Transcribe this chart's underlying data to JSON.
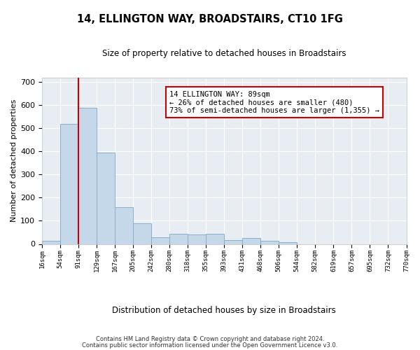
{
  "title": "14, ELLINGTON WAY, BROADSTAIRS, CT10 1FG",
  "subtitle": "Size of property relative to detached houses in Broadstairs",
  "xlabel": "Distribution of detached houses by size in Broadstairs",
  "ylabel": "Number of detached properties",
  "bar_values": [
    15,
    520,
    590,
    395,
    160,
    90,
    30,
    45,
    42,
    45,
    18,
    25,
    15,
    8,
    0,
    0,
    0,
    0,
    0,
    0
  ],
  "categories": [
    "16sqm",
    "54sqm",
    "91sqm",
    "129sqm",
    "167sqm",
    "205sqm",
    "242sqm",
    "280sqm",
    "318sqm",
    "355sqm",
    "393sqm",
    "431sqm",
    "468sqm",
    "506sqm",
    "544sqm",
    "582sqm",
    "619sqm",
    "657sqm",
    "695sqm",
    "732sqm",
    "770sqm"
  ],
  "bar_color": "#c5d8ea",
  "bar_edge_color": "#8aafc8",
  "vline_color": "#cc0000",
  "annotation_text": "14 ELLINGTON WAY: 89sqm\n← 26% of detached houses are smaller (480)\n73% of semi-detached houses are larger (1,355) →",
  "annotation_box_color": "#ffffff",
  "annotation_box_edge": "#cc0000",
  "ylim": [
    0,
    720
  ],
  "yticks": [
    0,
    100,
    200,
    300,
    400,
    500,
    600,
    700
  ],
  "background_color": "#e8edf4",
  "footer_line1": "Contains HM Land Registry data © Crown copyright and database right 2024.",
  "footer_line2": "Contains public sector information licensed under the Open Government Licence v3.0."
}
